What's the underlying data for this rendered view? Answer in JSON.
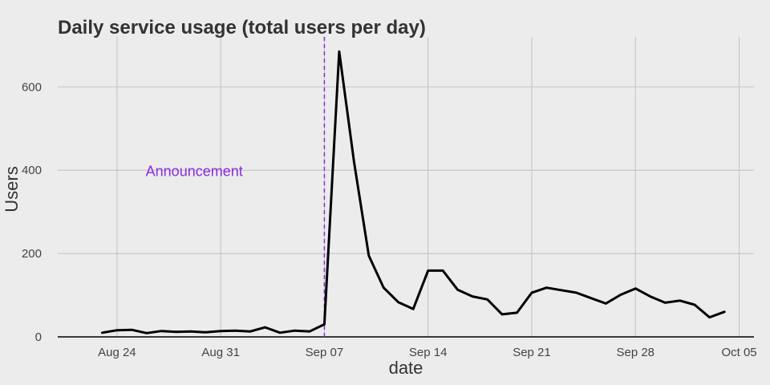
{
  "chart_data": {
    "type": "line",
    "title": "Daily service usage (total users per day)",
    "xlabel": "date",
    "ylabel": "Users",
    "xlim": [
      "2020-08-20",
      "2020-10-06"
    ],
    "ylim": [
      0,
      720
    ],
    "x_ticks": [
      {
        "date": "2020-08-24",
        "label": "Aug 24"
      },
      {
        "date": "2020-08-31",
        "label": "Aug 31"
      },
      {
        "date": "2020-09-07",
        "label": "Sep 07"
      },
      {
        "date": "2020-09-14",
        "label": "Sep 14"
      },
      {
        "date": "2020-09-21",
        "label": "Sep 21"
      },
      {
        "date": "2020-09-28",
        "label": "Sep 28"
      },
      {
        "date": "2020-10-05",
        "label": "Oct 05"
      }
    ],
    "y_ticks": [
      0,
      200,
      400,
      600
    ],
    "grid": true,
    "series": [
      {
        "color": "#000000",
        "points": [
          [
            "2020-08-23",
            10
          ],
          [
            "2020-08-24",
            16
          ],
          [
            "2020-08-25",
            17
          ],
          [
            "2020-08-26",
            9
          ],
          [
            "2020-08-27",
            14
          ],
          [
            "2020-08-28",
            12
          ],
          [
            "2020-08-29",
            13
          ],
          [
            "2020-08-30",
            11
          ],
          [
            "2020-08-31",
            14
          ],
          [
            "2020-09-01",
            15
          ],
          [
            "2020-09-02",
            13
          ],
          [
            "2020-09-03",
            23
          ],
          [
            "2020-09-04",
            10
          ],
          [
            "2020-09-05",
            15
          ],
          [
            "2020-09-06",
            13
          ],
          [
            "2020-09-07",
            30
          ],
          [
            "2020-09-08",
            685
          ],
          [
            "2020-09-09",
            420
          ],
          [
            "2020-09-10",
            195
          ],
          [
            "2020-09-11",
            118
          ],
          [
            "2020-09-12",
            83
          ],
          [
            "2020-09-13",
            67
          ],
          [
            "2020-09-14",
            159
          ],
          [
            "2020-09-15",
            159
          ],
          [
            "2020-09-16",
            113
          ],
          [
            "2020-09-17",
            97
          ],
          [
            "2020-09-18",
            90
          ],
          [
            "2020-09-19",
            54
          ],
          [
            "2020-09-20",
            58
          ],
          [
            "2020-09-21",
            106
          ],
          [
            "2020-09-22",
            118
          ],
          [
            "2020-09-23",
            112
          ],
          [
            "2020-09-24",
            106
          ],
          [
            "2020-09-25",
            93
          ],
          [
            "2020-09-26",
            80
          ],
          [
            "2020-09-27",
            101
          ],
          [
            "2020-09-28",
            116
          ],
          [
            "2020-09-29",
            97
          ],
          [
            "2020-09-30",
            82
          ],
          [
            "2020-10-01",
            87
          ],
          [
            "2020-10-02",
            77
          ],
          [
            "2020-10-03",
            47
          ],
          [
            "2020-10-04",
            60
          ]
        ]
      }
    ],
    "annotations": [
      {
        "type": "vline",
        "date": "2020-09-07",
        "color": "#8a2be2",
        "style": "dashed"
      },
      {
        "type": "text",
        "text": "Announcement",
        "date": "2020-08-29",
        "y": 398,
        "color": "#8a2be2"
      }
    ]
  }
}
